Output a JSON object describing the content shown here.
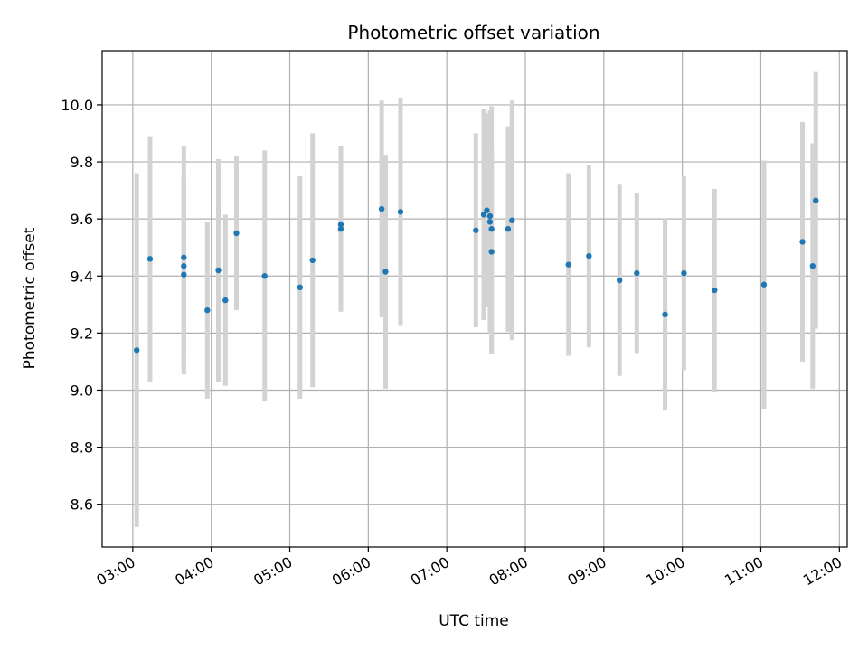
{
  "chart_data": {
    "type": "scatter",
    "title": "Photometric offset variation",
    "xlabel": "UTC time",
    "ylabel": "Photometric offset",
    "x_unit": "hours UTC",
    "xlim": [
      2.61,
      12.1
    ],
    "ylim": [
      8.45,
      10.19
    ],
    "x_ticks": [
      3,
      4,
      5,
      6,
      7,
      8,
      9,
      10,
      11,
      12
    ],
    "x_tick_labels": [
      "03:00",
      "04:00",
      "05:00",
      "06:00",
      "07:00",
      "08:00",
      "09:00",
      "10:00",
      "11:00",
      "12:00"
    ],
    "y_ticks": [
      8.6,
      8.8,
      9.0,
      9.2,
      9.4,
      9.6,
      9.8,
      10.0
    ],
    "y_tick_labels": [
      "8.6",
      "8.8",
      "9.0",
      "9.2",
      "9.4",
      "9.6",
      "9.8",
      "10.0"
    ],
    "grid": true,
    "colors": {
      "point": "#1f77b4",
      "errorbar": "#d3d3d3",
      "grid": "#b0b0b0"
    },
    "points": [
      {
        "x": 3.05,
        "y": 9.14,
        "err": 0.62
      },
      {
        "x": 3.22,
        "y": 9.46,
        "err": 0.43
      },
      {
        "x": 3.65,
        "y": 9.465,
        "err": 0.39
      },
      {
        "x": 3.65,
        "y": 9.435,
        "err": 0.3
      },
      {
        "x": 3.65,
        "y": 9.405,
        "err": 0.35
      },
      {
        "x": 3.95,
        "y": 9.28,
        "err": 0.31
      },
      {
        "x": 4.09,
        "y": 9.42,
        "err": 0.39
      },
      {
        "x": 4.18,
        "y": 9.315,
        "err": 0.3
      },
      {
        "x": 4.32,
        "y": 9.55,
        "err": 0.27
      },
      {
        "x": 4.68,
        "y": 9.4,
        "err": 0.44
      },
      {
        "x": 5.13,
        "y": 9.36,
        "err": 0.39
      },
      {
        "x": 5.29,
        "y": 9.455,
        "err": 0.445
      },
      {
        "x": 5.65,
        "y": 9.565,
        "err": 0.29
      },
      {
        "x": 5.65,
        "y": 9.58,
        "err": 0.27
      },
      {
        "x": 6.17,
        "y": 9.635,
        "err": 0.38
      },
      {
        "x": 6.22,
        "y": 9.415,
        "err": 0.41
      },
      {
        "x": 6.41,
        "y": 9.625,
        "err": 0.4
      },
      {
        "x": 7.37,
        "y": 9.56,
        "err": 0.34
      },
      {
        "x": 7.47,
        "y": 9.615,
        "err": 0.37
      },
      {
        "x": 7.51,
        "y": 9.63,
        "err": 0.34
      },
      {
        "x": 7.55,
        "y": 9.61,
        "err": 0.36
      },
      {
        "x": 7.55,
        "y": 9.59,
        "err": 0.39
      },
      {
        "x": 7.57,
        "y": 9.565,
        "err": 0.43
      },
      {
        "x": 7.57,
        "y": 9.485,
        "err": 0.36
      },
      {
        "x": 7.78,
        "y": 9.565,
        "err": 0.36
      },
      {
        "x": 7.83,
        "y": 9.595,
        "err": 0.42
      },
      {
        "x": 8.55,
        "y": 9.44,
        "err": 0.32
      },
      {
        "x": 8.81,
        "y": 9.47,
        "err": 0.32
      },
      {
        "x": 9.2,
        "y": 9.385,
        "err": 0.335
      },
      {
        "x": 9.42,
        "y": 9.41,
        "err": 0.28
      },
      {
        "x": 9.78,
        "y": 9.265,
        "err": 0.335
      },
      {
        "x": 10.02,
        "y": 9.41,
        "err": 0.34
      },
      {
        "x": 10.41,
        "y": 9.35,
        "err": 0.355
      },
      {
        "x": 11.04,
        "y": 9.37,
        "err": 0.435
      },
      {
        "x": 11.53,
        "y": 9.52,
        "err": 0.42
      },
      {
        "x": 11.66,
        "y": 9.435,
        "err": 0.43
      },
      {
        "x": 11.7,
        "y": 9.665,
        "err": 0.45
      }
    ]
  }
}
